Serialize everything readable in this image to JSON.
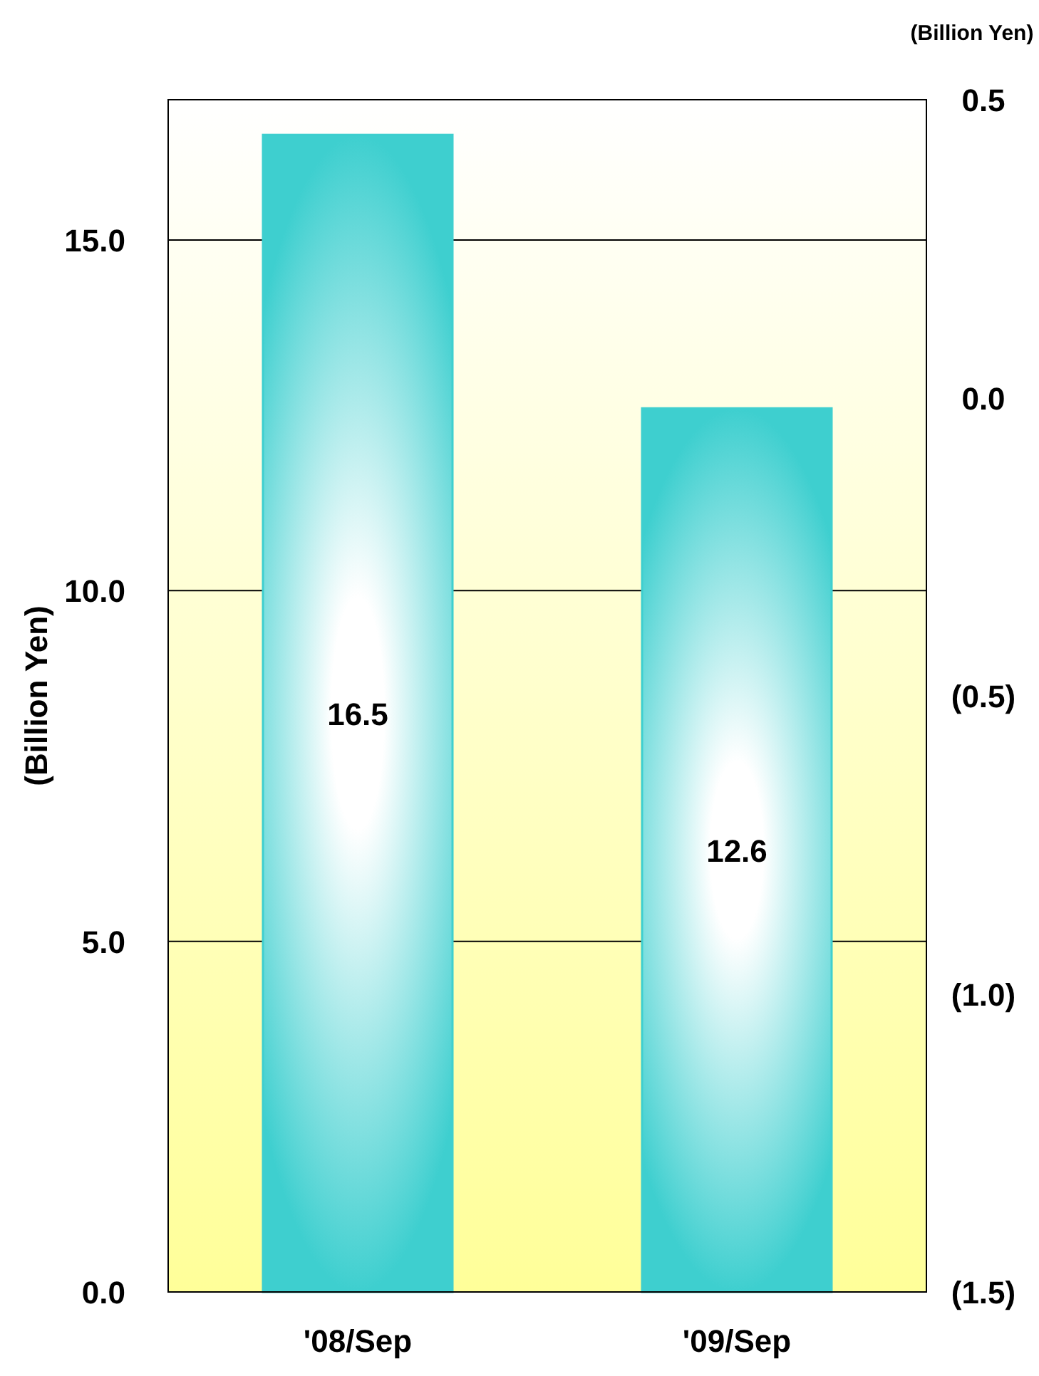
{
  "chart_data": {
    "type": "bar",
    "categories": [
      "'08/Sep",
      "'09/Sep"
    ],
    "series": [
      {
        "color": "#3ecfcf",
        "values": [
          16.5,
          12.6
        ]
      }
    ],
    "ylabel": "(Billion Yen)",
    "y2label": "(Billion Yen)",
    "ylim": [
      0,
      17
    ],
    "yticks": [
      {
        "value": 0,
        "label": "0.0"
      },
      {
        "value": 5,
        "label": "5.0"
      },
      {
        "value": 10,
        "label": "10.0"
      },
      {
        "value": 15,
        "label": "15.0"
      }
    ],
    "y2lim": [
      -1.5,
      0.5
    ],
    "y2ticks": [
      {
        "value": -1.5,
        "label": "(1.5)"
      },
      {
        "value": -1,
        "label": "(1.0)"
      },
      {
        "value": -0.5,
        "label": "(0.5)"
      },
      {
        "value": 0,
        "label": "0.0"
      },
      {
        "value": 0.5,
        "label": "0.5"
      }
    ],
    "grid": "y",
    "data_labels": true
  }
}
